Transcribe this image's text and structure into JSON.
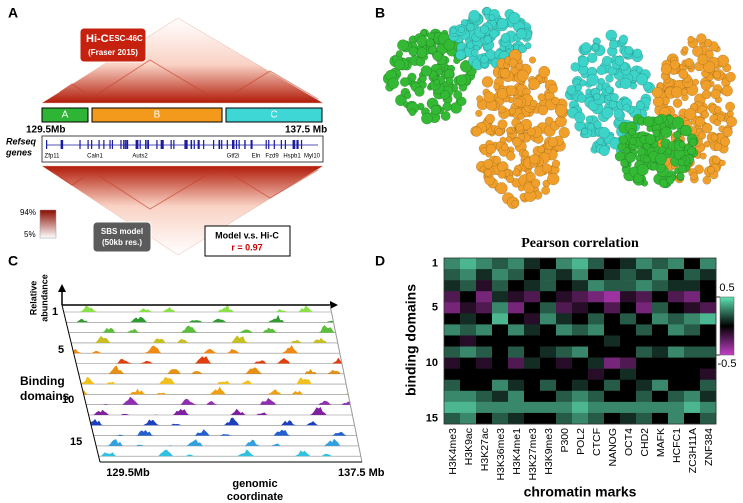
{
  "panel_a": {
    "label": "A",
    "hic_title": "Hi-C",
    "hic_cell": "ESC-46C",
    "hic_source": "(Fraser 2015)",
    "domains": [
      "A",
      "B",
      "C"
    ],
    "start": "129.5Mb",
    "end": "137.5 Mb",
    "genes_label_1": "Refseq",
    "genes_label_2": "genes",
    "genes": [
      "Zfp11",
      "Caln1",
      "Auts2",
      "Gtf2i",
      "Eln",
      "Fzd9",
      "Hspb1",
      "Myl10"
    ],
    "scale_max": "94%",
    "scale_min": "5%",
    "model_1": "SBS model",
    "model_2": "(50kb res.)",
    "comparison": "Model v.s. Hi-C",
    "r_value": "r = 0.97"
  },
  "panel_b": {
    "label": "B"
  },
  "panel_c": {
    "label": "C",
    "y_axis_1": "Relative",
    "y_axis_2": "abundance",
    "rows": [
      "1",
      "5",
      "10",
      "15"
    ],
    "rows_title_1": "Binding",
    "rows_title_2": "domains",
    "start": "129.5Mb",
    "end": "137.5 Mb",
    "x_axis_1": "genomic",
    "x_axis_2": "coordinate"
  },
  "panel_d_label": "D",
  "chart_data": {
    "type": "heatmap",
    "title": "Pearson correlation",
    "x_label": "chromatin marks",
    "y_label": "binding domains",
    "columns": [
      "H3K4me3",
      "H3K9ac",
      "H3K27ac",
      "H3K36me3",
      "H3K4me1",
      "H3K27me3",
      "H3K9me3",
      "P300",
      "POL2",
      "CTCF",
      "NANOG",
      "OCT4",
      "CHD2",
      "MAFK",
      "HCFC1",
      "ZC3H11A",
      "ZNF384"
    ],
    "rows": [
      "1",
      null,
      null,
      null,
      "5",
      null,
      null,
      null,
      null,
      "10",
      null,
      null,
      null,
      null,
      "15"
    ],
    "values": [
      [
        0.3,
        0.4,
        0.3,
        0.2,
        0.3,
        0.1,
        0.0,
        0.3,
        0.4,
        0.2,
        0.0,
        0.1,
        0.3,
        0.2,
        0.3,
        0.0,
        0.3
      ],
      [
        0.2,
        0.3,
        0.1,
        0.3,
        0.2,
        0.0,
        0.2,
        0.1,
        0.3,
        0.0,
        0.1,
        0.2,
        0.1,
        0.3,
        0.0,
        0.2,
        0.1
      ],
      [
        0.1,
        0.2,
        -0.1,
        0.2,
        0.0,
        0.1,
        0.2,
        0.0,
        0.1,
        0.3,
        0.2,
        0.2,
        0.3,
        0.2,
        0.1,
        0.1,
        0.0
      ],
      [
        -0.2,
        0.0,
        -0.3,
        0.1,
        -0.1,
        -0.2,
        0.0,
        -0.1,
        -0.2,
        -0.3,
        -0.4,
        -0.1,
        -0.2,
        0.0,
        -0.2,
        -0.3,
        0.0
      ],
      [
        -0.3,
        -0.1,
        -0.2,
        0.3,
        -0.3,
        0.0,
        0.2,
        -0.2,
        -0.1,
        0.0,
        -0.2,
        0.0,
        -0.3,
        0.2,
        0.0,
        -0.1,
        -0.2
      ],
      [
        0.0,
        0.1,
        0.0,
        0.4,
        0.0,
        -0.1,
        0.3,
        0.1,
        0.0,
        0.2,
        0.0,
        0.2,
        0.0,
        0.3,
        0.2,
        0.3,
        0.4
      ],
      [
        0.3,
        0.2,
        0.3,
        0.0,
        0.3,
        0.1,
        0.0,
        0.3,
        0.2,
        0.3,
        0.0,
        0.0,
        0.2,
        0.0,
        0.3,
        0.2,
        0.0
      ],
      [
        0.0,
        -0.1,
        0.0,
        0.0,
        0.0,
        0.0,
        0.0,
        0.0,
        0.0,
        0.0,
        0.1,
        0.0,
        0.0,
        0.0,
        0.0,
        0.0,
        0.0
      ],
      [
        0.2,
        0.3,
        0.2,
        0.0,
        0.2,
        0.0,
        0.1,
        0.2,
        0.3,
        0.0,
        0.0,
        0.0,
        0.2,
        0.1,
        0.3,
        0.2,
        0.2
      ],
      [
        -0.1,
        0.0,
        -0.1,
        0.0,
        -0.2,
        0.1,
        0.0,
        -0.1,
        0.0,
        0.1,
        -0.3,
        -0.2,
        0.0,
        0.0,
        0.0,
        0.0,
        0.0
      ],
      [
        0.0,
        0.0,
        0.0,
        0.0,
        0.0,
        0.0,
        0.0,
        0.0,
        0.0,
        -0.1,
        0.0,
        0.1,
        0.0,
        0.0,
        0.0,
        0.0,
        -0.1
      ],
      [
        0.2,
        0.0,
        0.0,
        0.3,
        0.1,
        0.0,
        0.2,
        0.0,
        0.1,
        0.0,
        0.2,
        0.0,
        0.1,
        0.3,
        0.0,
        0.0,
        0.2
      ],
      [
        0.3,
        0.3,
        0.2,
        0.1,
        0.3,
        0.0,
        0.0,
        0.2,
        0.3,
        0.2,
        0.0,
        0.0,
        0.2,
        0.0,
        0.2,
        0.3,
        0.1
      ],
      [
        0.4,
        0.4,
        0.3,
        0.3,
        0.3,
        0.3,
        0.3,
        0.3,
        0.4,
        0.3,
        0.3,
        0.3,
        0.3,
        0.3,
        0.3,
        0.4,
        0.3
      ],
      [
        0.2,
        0.3,
        0.0,
        0.2,
        0.1,
        0.0,
        0.0,
        0.2,
        0.3,
        0.2,
        0.0,
        0.1,
        0.2,
        0.0,
        0.3,
        0.0,
        0.2
      ]
    ],
    "zlim": [
      -0.5,
      0.5
    ],
    "colorbar_ticks": [
      0.5,
      -0.5
    ],
    "colors": {
      "positive": "#5fe3b4",
      "zero": "#000000",
      "negative": "#c440c8"
    }
  }
}
